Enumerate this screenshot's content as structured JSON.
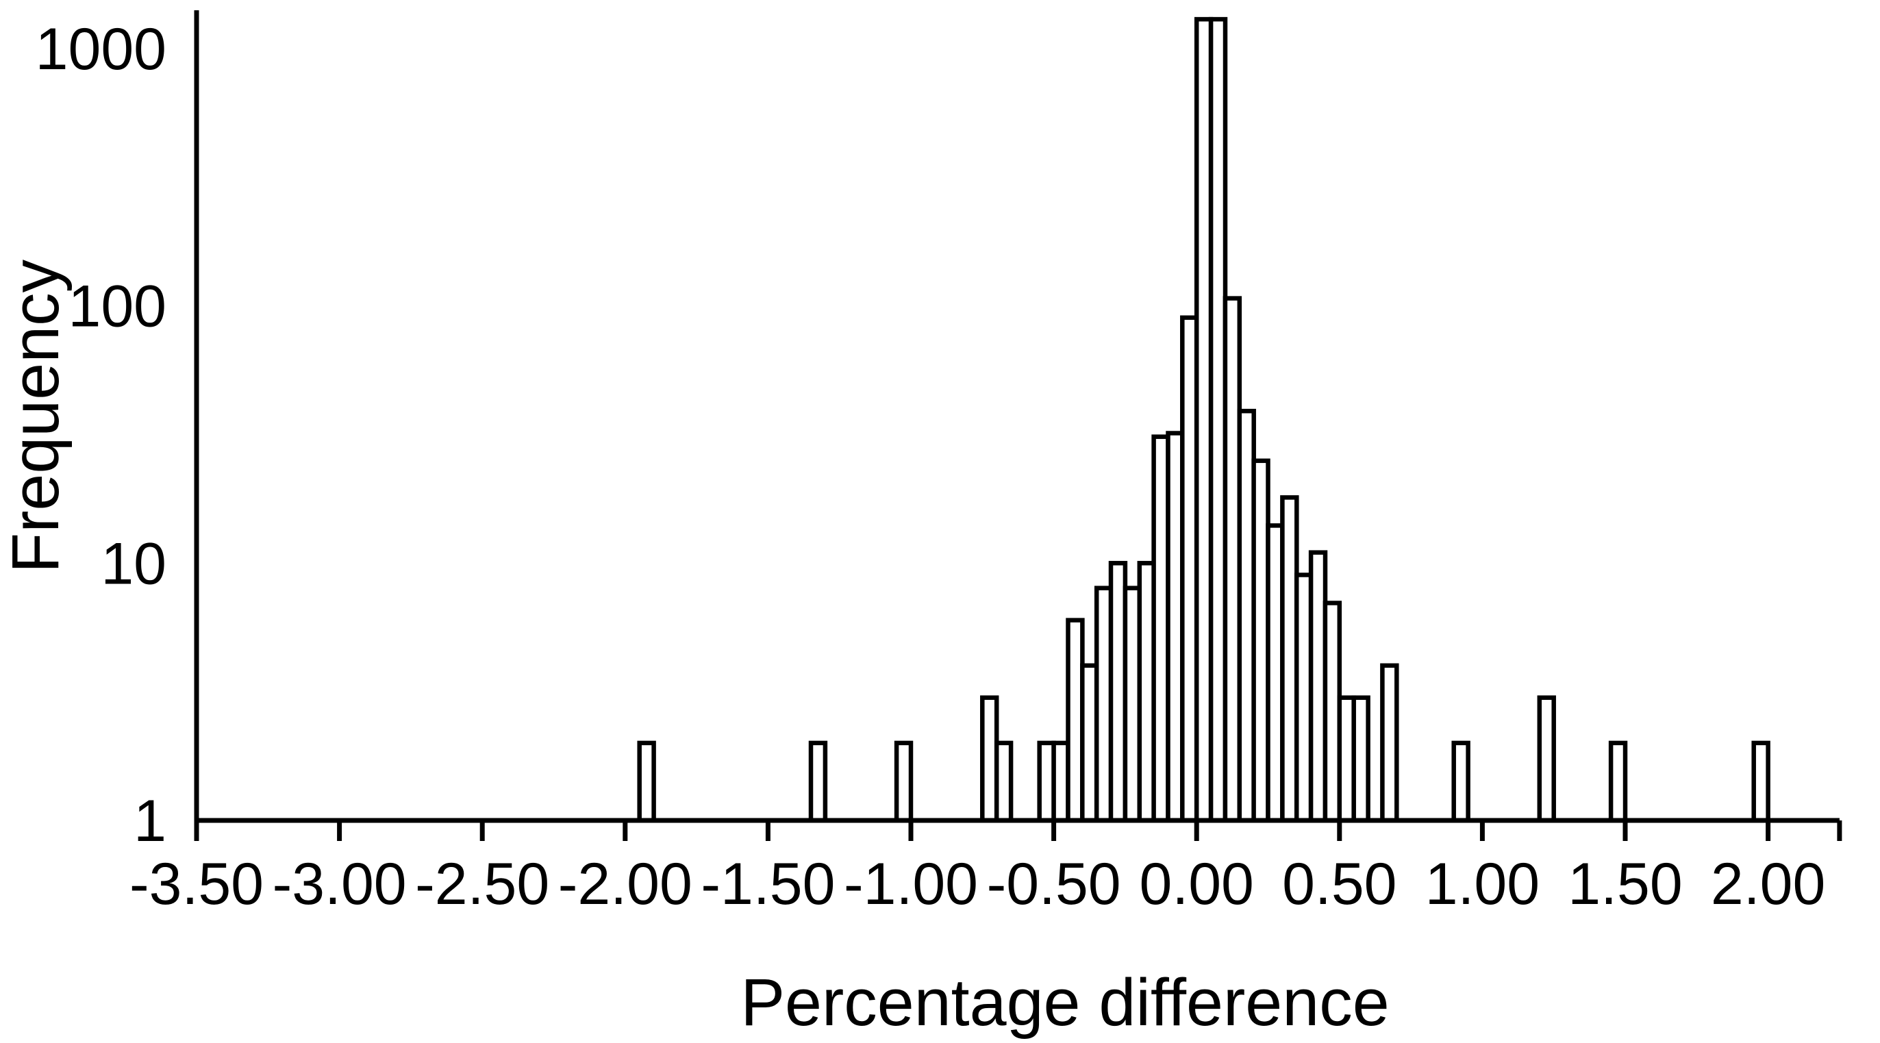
{
  "chart_data": {
    "type": "bar",
    "subtype": "histogram",
    "title": "",
    "xlabel": "Percentage difference",
    "ylabel": "Frequency",
    "y_scale": "log10",
    "grid": false,
    "legend": "none",
    "bar_fill": "#ffffff",
    "bar_outline": "#000000",
    "axis_color": "#000000",
    "xlim": [
      -3.5,
      2.25
    ],
    "ylim": [
      1,
      1400
    ],
    "x_major_unit": 0.5,
    "bin_width": 0.05,
    "y_tick_labels": [
      "1",
      "10",
      "100",
      "1000"
    ],
    "y_tick_values": [
      1,
      10,
      100,
      1000
    ],
    "x_tick_labels": [
      "-3.50",
      "-3.00",
      "-2.50",
      "-2.00",
      "-1.50",
      "-1.00",
      "-0.50",
      "0.00",
      "0.50",
      "1.00",
      "1.50",
      "2.00"
    ],
    "x_tick_values": [
      -3.5,
      -3.0,
      -2.5,
      -2.0,
      -1.5,
      -1.0,
      -0.5,
      0.0,
      0.5,
      1.0,
      1.5,
      2.0
    ],
    "peak_bars_clipped_at_top": true,
    "bars": [
      {
        "bin_start": -1.95,
        "count": 2
      },
      {
        "bin_start": -1.35,
        "count": 2
      },
      {
        "bin_start": -1.05,
        "count": 2
      },
      {
        "bin_start": -0.75,
        "count": 3
      },
      {
        "bin_start": -0.7,
        "count": 2
      },
      {
        "bin_start": -0.55,
        "count": 2
      },
      {
        "bin_start": -0.5,
        "count": 2
      },
      {
        "bin_start": -0.45,
        "count": 6
      },
      {
        "bin_start": -0.4,
        "count": 4
      },
      {
        "bin_start": -0.35,
        "count": 8
      },
      {
        "bin_start": -0.3,
        "count": 10
      },
      {
        "bin_start": -0.25,
        "count": 8
      },
      {
        "bin_start": -0.2,
        "count": 10
      },
      {
        "bin_start": -0.15,
        "count": 31
      },
      {
        "bin_start": -0.1,
        "count": 32
      },
      {
        "bin_start": -0.05,
        "count": 90
      },
      {
        "bin_start": 0.0,
        "count": 1300,
        "estimated": true
      },
      {
        "bin_start": 0.05,
        "count": 1300,
        "estimated": true
      },
      {
        "bin_start": 0.1,
        "count": 107
      },
      {
        "bin_start": 0.15,
        "count": 39
      },
      {
        "bin_start": 0.2,
        "count": 25
      },
      {
        "bin_start": 0.25,
        "count": 14
      },
      {
        "bin_start": 0.3,
        "count": 18
      },
      {
        "bin_start": 0.35,
        "count": 9
      },
      {
        "bin_start": 0.4,
        "count": 11
      },
      {
        "bin_start": 0.45,
        "count": 7
      },
      {
        "bin_start": 0.5,
        "count": 3
      },
      {
        "bin_start": 0.55,
        "count": 3
      },
      {
        "bin_start": 0.65,
        "count": 4
      },
      {
        "bin_start": 0.9,
        "count": 2
      },
      {
        "bin_start": 1.2,
        "count": 3
      },
      {
        "bin_start": 1.45,
        "count": 2
      },
      {
        "bin_start": 1.95,
        "count": 2
      }
    ]
  }
}
